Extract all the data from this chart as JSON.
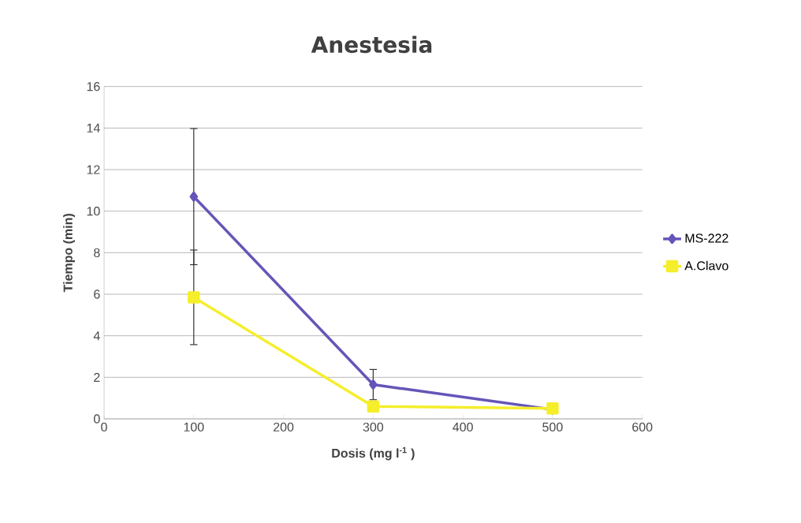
{
  "chart_data": {
    "type": "line",
    "title": "Anestesia",
    "xlabel": "Dosis (mg l$^{-1}$ )",
    "ylabel": "Tiempo (min)",
    "x": [
      100,
      300,
      500
    ],
    "series": [
      {
        "name": "MS-222",
        "color": "#6655b8",
        "marker": "diamond",
        "values": [
          10.7,
          1.65,
          0.45
        ],
        "errors": [
          3.3,
          0.75,
          null
        ]
      },
      {
        "name": "A.Clavo",
        "color": "#f5ee2a",
        "marker": "square",
        "values": [
          5.85,
          0.6,
          0.5
        ],
        "errors": [
          2.3,
          null,
          null
        ]
      }
    ],
    "xlim": [
      0,
      600
    ],
    "xticks": [
      0,
      100,
      200,
      300,
      400,
      500,
      600
    ],
    "ylim": [
      0,
      16
    ],
    "yticks": [
      0,
      2,
      4,
      6,
      8,
      10,
      12,
      14,
      16
    ],
    "grid": "y",
    "legend": "right",
    "line_style": "solid"
  }
}
